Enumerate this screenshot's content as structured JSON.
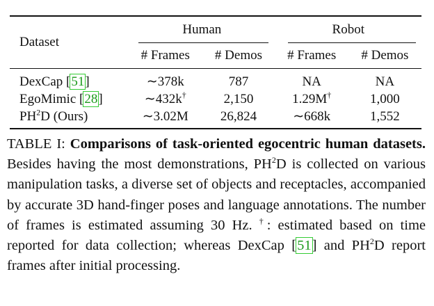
{
  "table": {
    "header": {
      "dataset": "Dataset",
      "group_human": "Human",
      "group_robot": "Robot",
      "frames_h": "# Frames",
      "demos_h": "# Demos",
      "frames_r": "# Frames",
      "demos_r": "# Demos"
    },
    "rows": [
      {
        "name": "DexCap ",
        "cite": "51",
        "frames_h": "∼378k",
        "frames_h_mark": "",
        "demos_h": "787",
        "frames_r": "NA",
        "frames_r_mark": "",
        "demos_r": "NA"
      },
      {
        "name": "EgoMimic ",
        "cite": "28",
        "frames_h": "∼432k",
        "frames_h_mark": "†",
        "demos_h": "2,150",
        "frames_r": "1.29M",
        "frames_r_mark": "†",
        "demos_r": "1,000"
      },
      {
        "name_pre": "PH",
        "name_sup": "2",
        "name_post": "D (Ours)",
        "frames_h": "∼3.02M",
        "demos_h": "26,824",
        "frames_r": "∼668k",
        "demos_r": "1,552"
      }
    ]
  },
  "caption": {
    "label": "TABLE I: ",
    "title": "Comparisons of task-oriented egocentric human datasets.",
    "text1": " Besides having the most demonstrations, PH",
    "sup1": "2",
    "text2": "D is collected on various manipulation tasks, a diverse set of objects and receptacles, accompanied by accurate 3D hand-finger poses and language annotations. The number of frames is estimated assuming 30 Hz. ",
    "dagger": "†",
    "text3": ": estimated based on time reported for data collection; whereas DexCap ",
    "cite": "51",
    "text4": " and PH",
    "sup2": "2",
    "text5": "D report frames after initial processing."
  }
}
